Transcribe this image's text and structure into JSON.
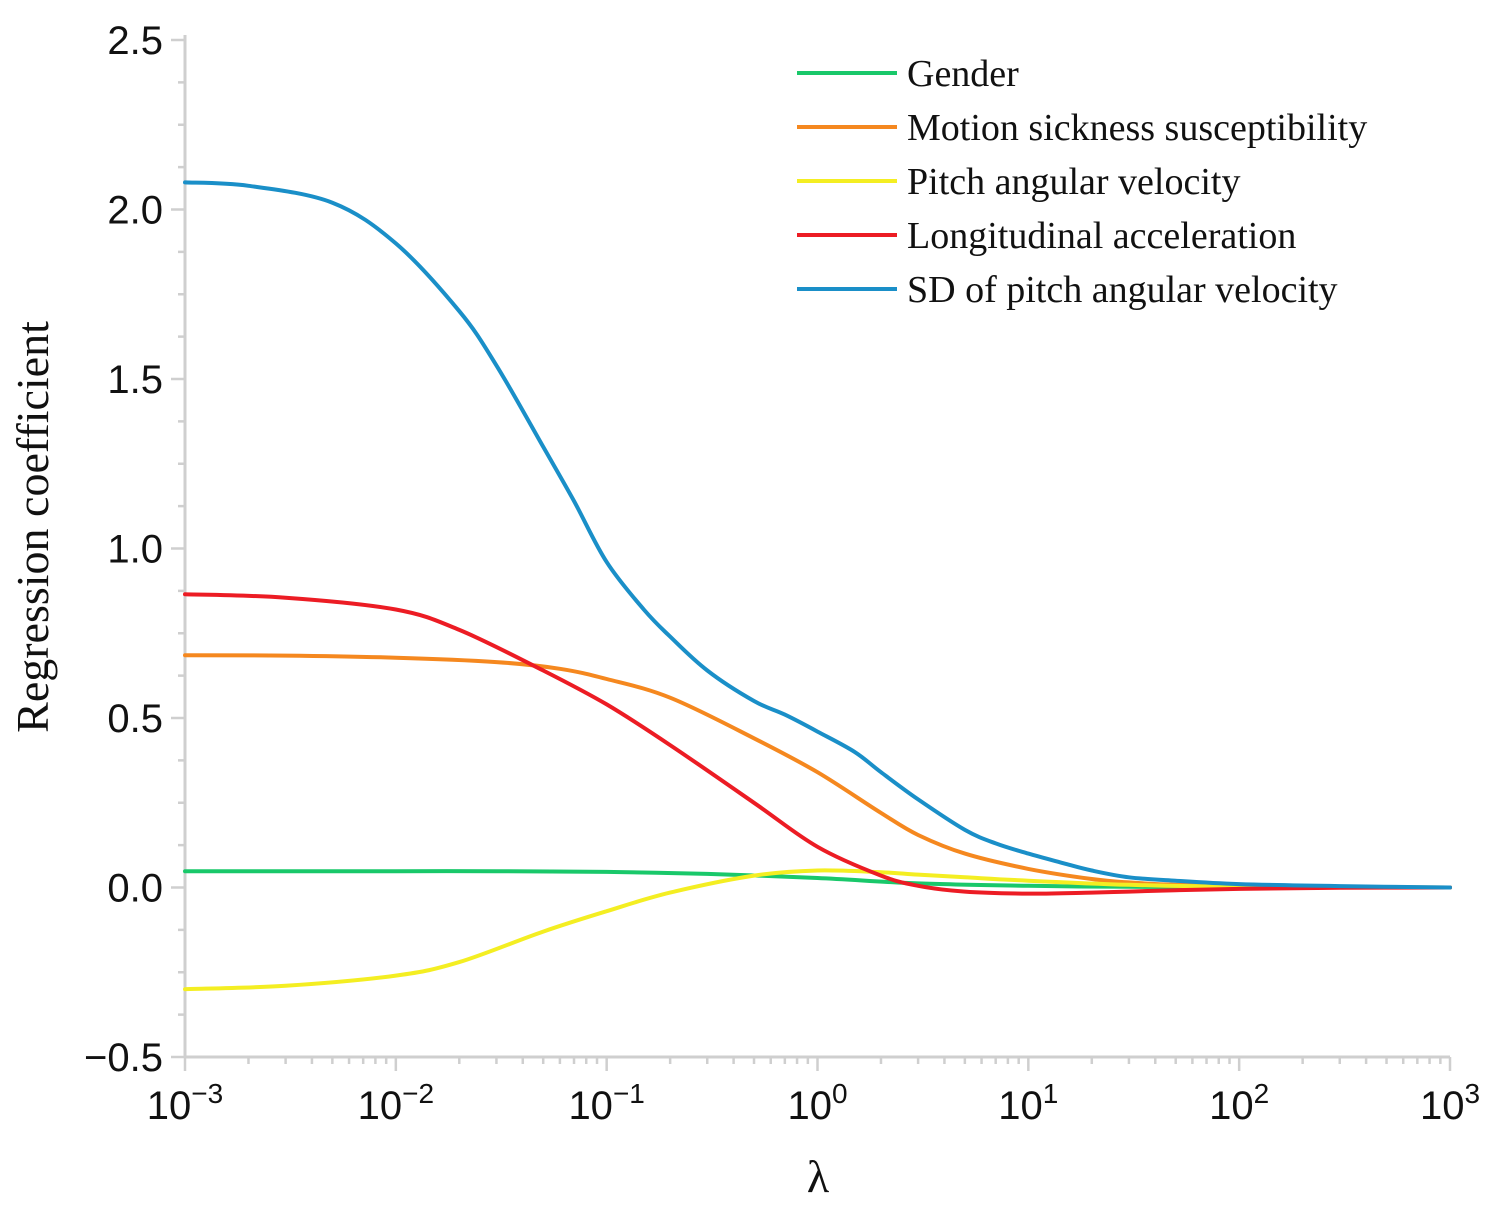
{
  "chart_data": {
    "type": "line",
    "title": "",
    "xlabel": "λ",
    "ylabel": "Regression coefficient",
    "xscale": "log10",
    "xlim": [
      0.001,
      1000
    ],
    "ylim": [
      -0.5,
      2.5
    ],
    "x_ticks": [
      {
        "base": "10",
        "exp": "−3"
      },
      {
        "base": "10",
        "exp": "−2"
      },
      {
        "base": "10",
        "exp": "−1"
      },
      {
        "base": "10",
        "exp": "0"
      },
      {
        "base": "10",
        "exp": "1"
      },
      {
        "base": "10",
        "exp": "2"
      },
      {
        "base": "10",
        "exp": "3"
      }
    ],
    "y_ticks": [
      "−0.5",
      "0.0",
      "0.5",
      "1.0",
      "1.5",
      "2.0",
      "2.5"
    ],
    "legend_position": "top-right",
    "series": [
      {
        "name": "Gender",
        "color": "#19c86a",
        "x": [
          0.001,
          0.003,
          0.01,
          0.03,
          0.1,
          0.3,
          1,
          3,
          10,
          30,
          100,
          300,
          1000
        ],
        "y": [
          0.048,
          0.048,
          0.048,
          0.048,
          0.046,
          0.04,
          0.028,
          0.012,
          0.005,
          0.002,
          0.001,
          0.0,
          0.0
        ]
      },
      {
        "name": "Motion sickness susceptibility",
        "color": "#f5881f",
        "x": [
          0.001,
          0.003,
          0.01,
          0.03,
          0.06,
          0.1,
          0.2,
          0.5,
          1,
          2,
          3,
          5,
          10,
          20,
          30,
          50,
          100,
          300,
          1000
        ],
        "y": [
          0.685,
          0.684,
          0.678,
          0.665,
          0.645,
          0.615,
          0.56,
          0.44,
          0.34,
          0.22,
          0.155,
          0.1,
          0.055,
          0.025,
          0.015,
          0.008,
          0.004,
          0.001,
          0.0
        ]
      },
      {
        "name": "Pitch angular velocity",
        "color": "#f4ee22",
        "x": [
          0.001,
          0.003,
          0.01,
          0.02,
          0.05,
          0.1,
          0.2,
          0.5,
          1,
          2,
          3,
          5,
          10,
          30,
          100,
          1000
        ],
        "y": [
          -0.3,
          -0.29,
          -0.26,
          -0.22,
          -0.13,
          -0.07,
          -0.015,
          0.035,
          0.05,
          0.045,
          0.038,
          0.03,
          0.02,
          0.008,
          0.002,
          0.0
        ]
      },
      {
        "name": "Longitudinal acceleration",
        "color": "#ec1c24",
        "x": [
          0.001,
          0.003,
          0.01,
          0.02,
          0.05,
          0.1,
          0.2,
          0.5,
          1,
          2,
          3,
          5,
          10,
          20,
          30,
          50,
          100,
          300,
          1000
        ],
        "y": [
          0.865,
          0.855,
          0.82,
          0.76,
          0.64,
          0.54,
          0.42,
          0.25,
          0.12,
          0.035,
          0.005,
          -0.012,
          -0.018,
          -0.015,
          -0.012,
          -0.008,
          -0.004,
          -0.001,
          0.0
        ]
      },
      {
        "name": "SD of pitch angular velocity",
        "color": "#1a8fc8",
        "x": [
          0.001,
          0.002,
          0.005,
          0.01,
          0.02,
          0.03,
          0.05,
          0.07,
          0.1,
          0.15,
          0.2,
          0.3,
          0.5,
          0.7,
          1,
          1.5,
          2,
          3,
          5,
          7,
          10,
          15,
          20,
          30,
          50,
          100,
          300,
          1000
        ],
        "y": [
          2.08,
          2.07,
          2.02,
          1.9,
          1.7,
          1.54,
          1.3,
          1.14,
          0.96,
          0.82,
          0.74,
          0.64,
          0.55,
          0.51,
          0.46,
          0.4,
          0.34,
          0.26,
          0.17,
          0.13,
          0.1,
          0.07,
          0.05,
          0.03,
          0.02,
          0.01,
          0.004,
          0.0
        ]
      }
    ]
  }
}
